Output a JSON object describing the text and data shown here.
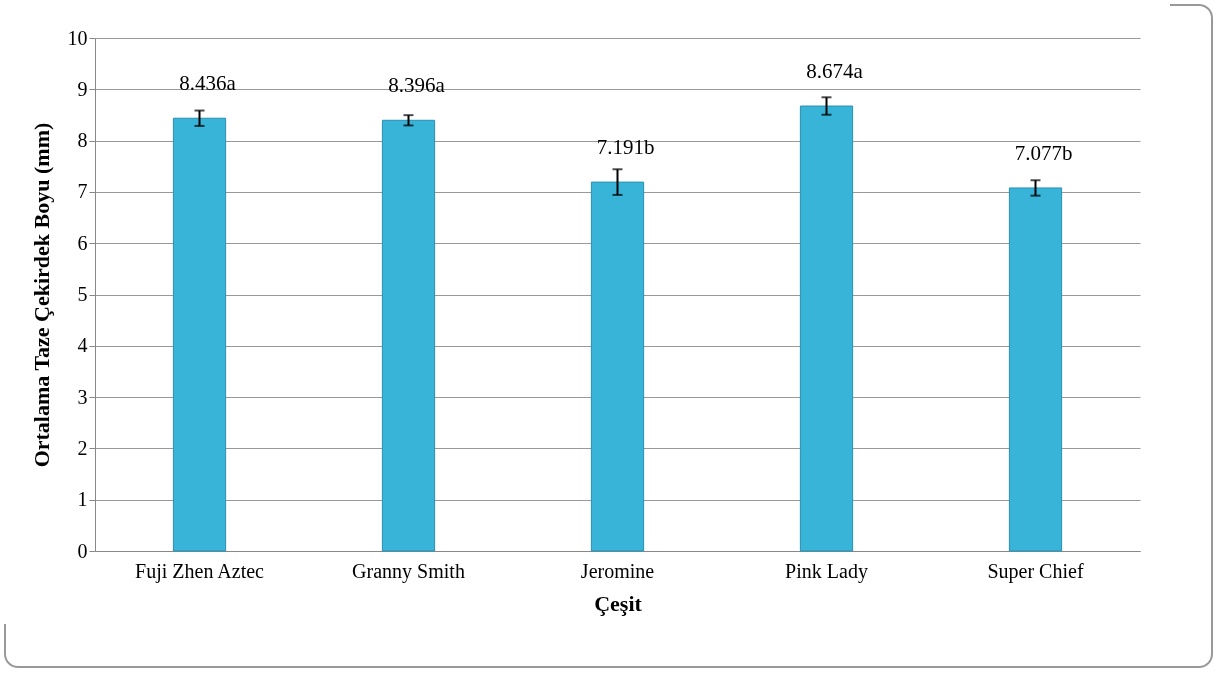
{
  "chart_data": {
    "type": "bar",
    "xlabel": "Çeşit",
    "ylabel": "Ortalama Taze Çekirdek Boyu (mm)",
    "categories": [
      "Fuji Zhen Aztec",
      "Granny Smith",
      "Jeromine",
      "Pink Lady",
      "Super Chief"
    ],
    "values": [
      8.436,
      8.396,
      7.191,
      8.674,
      7.077
    ],
    "errors": [
      0.15,
      0.1,
      0.25,
      0.17,
      0.15
    ],
    "value_labels": [
      "8.436a",
      "8.396a",
      "7.191b",
      "8.674a",
      "7.077b"
    ],
    "color": "#38b4d9",
    "ylim": [
      0,
      10
    ],
    "yticks": [
      0,
      1,
      2,
      3,
      4,
      5,
      6,
      7,
      8,
      9,
      10
    ],
    "grid": "y"
  }
}
